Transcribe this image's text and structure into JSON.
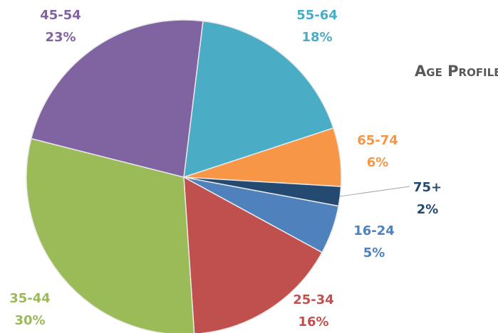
{
  "chart_data": {
    "type": "pie",
    "title": "Age Profile",
    "categories": [
      "55-64",
      "65-74",
      "75+",
      "16-24",
      "25-34",
      "35-44",
      "45-54"
    ],
    "values": [
      18,
      6,
      2,
      5,
      16,
      30,
      23
    ],
    "value_labels": [
      "18%",
      "6%",
      "2%",
      "5%",
      "16%",
      "30%",
      "23%"
    ],
    "colors": [
      "#4bacc6",
      "#f79646",
      "#254a72",
      "#4f81bd",
      "#c0504d",
      "#9bbb59",
      "#8064a2"
    ]
  }
}
